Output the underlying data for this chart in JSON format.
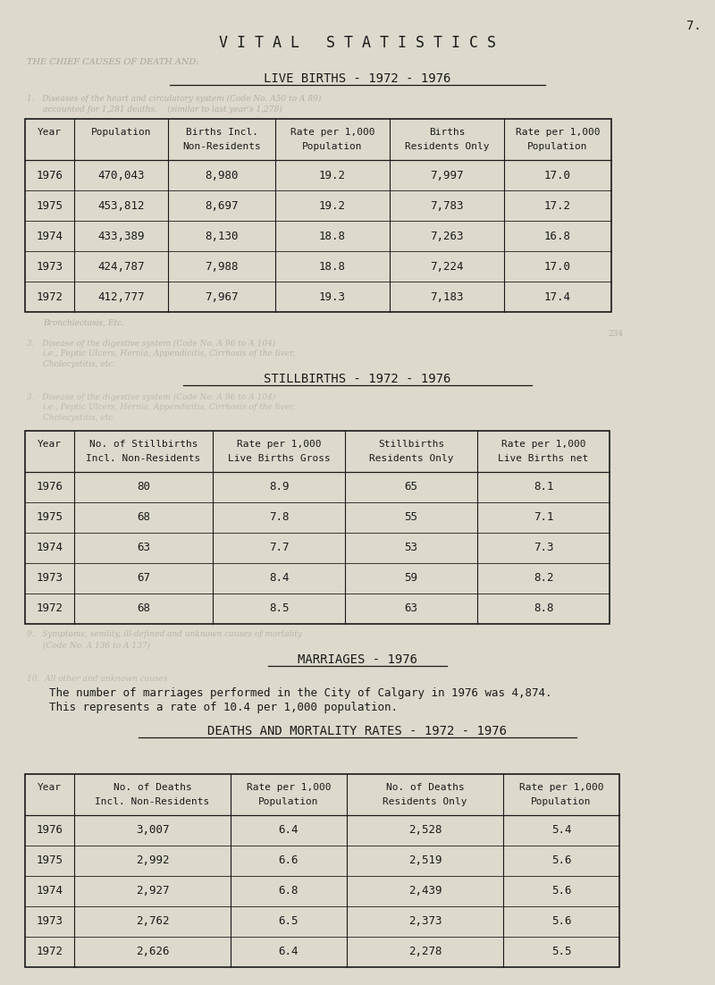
{
  "page_number": "7.",
  "bg_color": "#ddd9cc",
  "text_color": "#1a1a1a",
  "title_main": "V I T A L   S T A T I S T I C S",
  "section1_title": "LIVE BIRTHS - 1972 - 1976",
  "section2_title": "STILLBIRTHS - 1972 - 1976",
  "section3_title": "MARRIAGES - 1976",
  "section4_title": "DEATHS AND MORTALITY RATES - 1972 - 1976",
  "marriages_text1": "The number of marriages performed in the City of Calgary in 1976 was 4,874.",
  "marriages_text2": "This represents a rate of 10.4 per 1,000 population.",
  "live_births_headers_row1": [
    "Year",
    "Population",
    "Births Incl.",
    "Rate per 1,000",
    "Births",
    "Rate per 1,000"
  ],
  "live_births_headers_row2": [
    "",
    "",
    "Non-Residents",
    "Population",
    "Residents Only",
    "Population"
  ],
  "live_births_data": [
    [
      "1976",
      "470,043",
      "8,980",
      "19.2",
      "7,997",
      "17.0"
    ],
    [
      "1975",
      "453,812",
      "8,697",
      "19.2",
      "7,783",
      "17.2"
    ],
    [
      "1974",
      "433,389",
      "8,130",
      "18.8",
      "7,263",
      "16.8"
    ],
    [
      "1973",
      "424,787",
      "7,988",
      "18.8",
      "7,224",
      "17.0"
    ],
    [
      "1972",
      "412,777",
      "7,967",
      "19.3",
      "7,183",
      "17.4"
    ]
  ],
  "live_births_col_widths": [
    55,
    105,
    120,
    128,
    128,
    120
  ],
  "stillbirths_headers_row1": [
    "Year",
    "No. of Stillbirths",
    "Rate per 1,000",
    "Stillbirths",
    "Rate per 1,000"
  ],
  "stillbirths_headers_row2": [
    "",
    "Incl. Non-Residents",
    "Live Births Gross",
    "Residents Only",
    "Live Births net"
  ],
  "stillbirths_data": [
    [
      "1976",
      "80",
      "8.9",
      "65",
      "8.1"
    ],
    [
      "1975",
      "68",
      "7.8",
      "55",
      "7.1"
    ],
    [
      "1974",
      "63",
      "7.7",
      "53",
      "7.3"
    ],
    [
      "1973",
      "67",
      "8.4",
      "59",
      "8.2"
    ],
    [
      "1972",
      "68",
      "8.5",
      "63",
      "8.8"
    ]
  ],
  "stillbirths_col_widths": [
    55,
    155,
    148,
    148,
    148
  ],
  "deaths_headers_row1": [
    "Year",
    "No. of Deaths",
    "Rate per 1,000",
    "No. of Deaths",
    "Rate per 1,000"
  ],
  "deaths_headers_row2": [
    "",
    "Incl. Non-Residents",
    "Population",
    "Residents Only",
    "Population"
  ],
  "deaths_data": [
    [
      "1976",
      "3,007",
      "6.4",
      "2,528",
      "5.4"
    ],
    [
      "1975",
      "2,992",
      "6.6",
      "2,519",
      "5.6"
    ],
    [
      "1974",
      "2,927",
      "6.8",
      "2,439",
      "5.6"
    ],
    [
      "1973",
      "2,762",
      "6.5",
      "2,373",
      "5.6"
    ],
    [
      "1972",
      "2,626",
      "6.4",
      "2,278",
      "5.5"
    ]
  ],
  "deaths_col_widths": [
    55,
    175,
    130,
    175,
    130
  ]
}
